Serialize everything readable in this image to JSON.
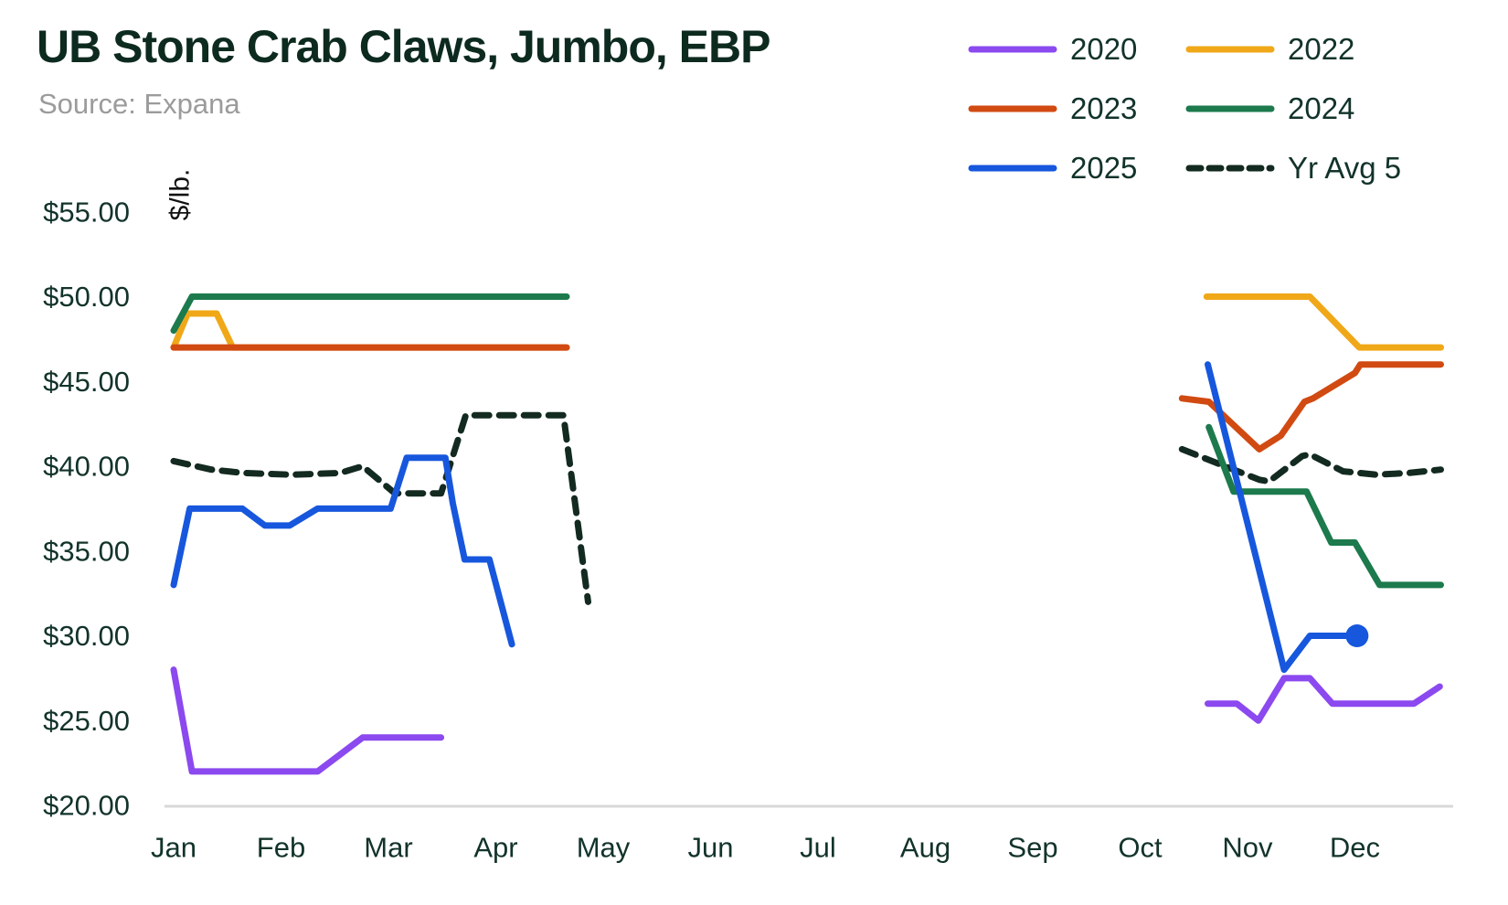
{
  "title": "UB Stone Crab Claws, Jumbo, EBP",
  "source": "Source: Expana",
  "chart_data": {
    "type": "line",
    "title": "UB Stone Crab Claws, Jumbo, EBP",
    "subtitle": "Source: Expana",
    "xlabel": "",
    "ylabel": "$/lb.",
    "grid": false,
    "legend_position": "top-right",
    "ylim": [
      20,
      57
    ],
    "y_ticks": [
      {
        "value": 55,
        "label": "$55.00"
      },
      {
        "value": 50,
        "label": "$50.00"
      },
      {
        "value": 45,
        "label": "$45.00"
      },
      {
        "value": 40,
        "label": "$40.00"
      },
      {
        "value": 35,
        "label": "$35.00"
      },
      {
        "value": 30,
        "label": "$30.00"
      },
      {
        "value": 25,
        "label": "$25.00"
      },
      {
        "value": 20,
        "label": "$20.00"
      }
    ],
    "x_ticks": [
      "Jan",
      "Feb",
      "Mar",
      "Apr",
      "May",
      "Jun",
      "Jul",
      "Aug",
      "Sep",
      "Oct",
      "Nov",
      "Dec"
    ],
    "x_unit": "month-fraction (0 = Jan tick ... 11 = Dec tick), price in $/lb",
    "series": [
      {
        "name": "Yr Avg 5",
        "color": "#132a20",
        "style": "dashed",
        "segments": [
          [
            [
              0,
              40.3
            ],
            [
              0.35,
              39.8
            ],
            [
              0.65,
              39.6
            ],
            [
              1.1,
              39.5
            ],
            [
              1.55,
              39.6
            ],
            [
              1.76,
              40.0
            ],
            [
              2.06,
              38.4
            ],
            [
              2.49,
              38.4
            ],
            [
              2.72,
              43.0
            ],
            [
              3.63,
              43.0
            ],
            [
              3.86,
              32.0
            ]
          ],
          [
            [
              9.39,
              41.0
            ],
            [
              9.79,
              40.0
            ],
            [
              10.11,
              39.2
            ],
            [
              10.2,
              39.1
            ],
            [
              10.51,
              40.6
            ],
            [
              10.58,
              40.7
            ],
            [
              10.89,
              39.7
            ],
            [
              11.2,
              39.5
            ],
            [
              11.5,
              39.6
            ],
            [
              11.8,
              39.8
            ]
          ]
        ]
      },
      {
        "name": "2020",
        "color": "#8b49ef",
        "style": "solid",
        "segments": [
          [
            [
              0,
              28
            ],
            [
              0.17,
              22
            ],
            [
              1.34,
              22
            ],
            [
              1.76,
              24
            ],
            [
              2.49,
              24
            ]
          ],
          [
            [
              9.63,
              26
            ],
            [
              9.9,
              26
            ],
            [
              10.1,
              25
            ],
            [
              10.34,
              27.5
            ],
            [
              10.58,
              27.5
            ],
            [
              10.79,
              26
            ],
            [
              11.55,
              26
            ],
            [
              11.79,
              27
            ]
          ]
        ]
      },
      {
        "name": "2022",
        "color": "#f0a818",
        "style": "solid",
        "segments": [
          [
            [
              0,
              47
            ],
            [
              0.13,
              49
            ],
            [
              0.4,
              49
            ],
            [
              0.55,
              47
            ],
            [
              3.66,
              47
            ]
          ],
          [
            [
              9.62,
              50
            ],
            [
              10.58,
              50
            ],
            [
              11.04,
              47
            ],
            [
              11.8,
              47
            ]
          ]
        ]
      },
      {
        "name": "2023",
        "color": "#d14a12",
        "style": "solid",
        "segments": [
          [
            [
              0,
              47
            ],
            [
              3.66,
              47
            ]
          ],
          [
            [
              9.39,
              44
            ],
            [
              9.64,
              43.8
            ],
            [
              10.11,
              41
            ],
            [
              10.31,
              41.8
            ],
            [
              10.53,
              43.8
            ],
            [
              10.61,
              44
            ],
            [
              11.0,
              45.5
            ],
            [
              11.05,
              46
            ],
            [
              11.8,
              46
            ]
          ]
        ]
      },
      {
        "name": "2024",
        "color": "#1c7a4d",
        "style": "solid",
        "segments": [
          [
            [
              0,
              48
            ],
            [
              0.17,
              50
            ],
            [
              3.66,
              50
            ]
          ],
          [
            [
              9.64,
              42.3
            ],
            [
              9.87,
              38.5
            ],
            [
              10.55,
              38.5
            ],
            [
              10.78,
              35.5
            ],
            [
              11.0,
              35.5
            ],
            [
              11.23,
              33
            ],
            [
              11.8,
              33
            ]
          ]
        ]
      },
      {
        "name": "2025",
        "color": "#1757dd",
        "style": "solid",
        "segments": [
          [
            [
              0,
              33
            ],
            [
              0.15,
              37.5
            ],
            [
              0.64,
              37.5
            ],
            [
              0.85,
              36.5
            ],
            [
              1.08,
              36.5
            ],
            [
              1.34,
              37.5
            ],
            [
              2.02,
              37.5
            ],
            [
              2.17,
              40.5
            ],
            [
              2.53,
              40.5
            ],
            [
              2.6,
              37.8
            ],
            [
              2.71,
              34.5
            ],
            [
              2.94,
              34.5
            ],
            [
              3.15,
              29.5
            ]
          ],
          [
            [
              9.63,
              46
            ],
            [
              10.34,
              28
            ],
            [
              10.58,
              30
            ],
            [
              11.02,
              30
            ]
          ]
        ]
      }
    ],
    "end_marker": {
      "series": "2025",
      "x": 11.02,
      "y": 30,
      "radius": 12.5
    },
    "legend_order": [
      "2020",
      "2022",
      "2023",
      "2024",
      "2025",
      "Yr Avg 5"
    ]
  },
  "colors": {
    "title_text": "#0d2a1e",
    "tick_text": "#12332a",
    "source_text": "#9b9b9b",
    "axis_line": "#d9d9d9"
  }
}
